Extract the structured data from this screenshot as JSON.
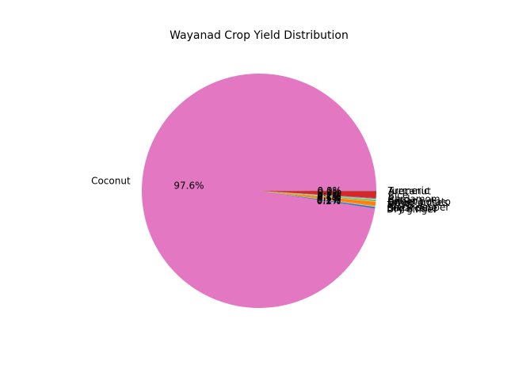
{
  "chart_data": {
    "type": "pie",
    "title": "Wayanad Crop Yield Distribution",
    "start_angle_deg": 0,
    "counterclock": true,
    "slices": [
      {
        "label": "Coconut",
        "value": 97.6,
        "pct_label": "97.6%",
        "color": "#e377c2"
      },
      {
        "label": "Dry ginger",
        "value": 0.2,
        "pct_label": "0.2%",
        "color": "#1f77b4"
      },
      {
        "label": "Sugarcane",
        "value": 0.1,
        "pct_label": "0.1%",
        "color": "#aec7e8"
      },
      {
        "label": "Black pepper",
        "value": 0.1,
        "pct_label": "0.1%",
        "color": "#ff7f0e"
      },
      {
        "label": "Tapioca",
        "value": 0.5,
        "pct_label": "0.5%",
        "color": "#ff7f0e"
      },
      {
        "label": "Other pulses",
        "value": 0.1,
        "pct_label": "0.1%",
        "color": "#ffbb78"
      },
      {
        "label": "Sweet potato",
        "value": 0.1,
        "pct_label": "0.1%",
        "color": "#2ca02c"
      },
      {
        "label": "Banana",
        "value": 0.2,
        "pct_label": "0.2%",
        "color": "#98df8a"
      },
      {
        "label": "Cardamom",
        "value": 0.1,
        "pct_label": "0.1%",
        "color": "#9467bd"
      },
      {
        "label": "Rice",
        "value": 0.9,
        "pct_label": "0.9%",
        "color": "#d62728"
      },
      {
        "label": "Arecanut",
        "value": 0.1,
        "pct_label": "0.1%",
        "color": "#8c564b"
      },
      {
        "label": "Turmeric",
        "value": 0.0,
        "pct_label": "0.0%",
        "color": "#c49c94"
      }
    ]
  }
}
